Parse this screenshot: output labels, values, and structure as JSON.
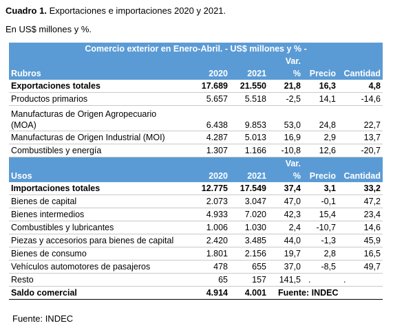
{
  "title": {
    "label": "Cuadro 1.",
    "text": "Exportaciones e importaciones 2020 y 2021."
  },
  "subtitle": "En US$ millones y %.",
  "table": {
    "caption": "Comercio exterior en Enero-Abril. - US$ millones y % -",
    "sections": [
      {
        "header": {
          "top": "Var.",
          "cells": [
            "Rubros",
            "2020",
            "2021",
            "%",
            "Precio",
            "Cantidad"
          ]
        },
        "rows": [
          {
            "bold": true,
            "cells": [
              "Exportaciones totales",
              "17.689",
              "21.550",
              "21,8",
              "16,3",
              "4,8"
            ]
          },
          {
            "cells": [
              "Productos primarios",
              "5.657",
              "5.518",
              "-2,5",
              "14,1",
              "-14,6"
            ]
          },
          {
            "cells": [
              [
                "Manufacturas de Origen Agropecuario",
                "(MOA)"
              ],
              "6.438",
              "9.853",
              "53,0",
              "24,8",
              "22,7"
            ]
          },
          {
            "cells": [
              "Manufacturas de Origen Industrial (MOI)",
              "4.287",
              "5.013",
              "16,9",
              "2,9",
              "13,7"
            ]
          },
          {
            "cells": [
              "Combustibles y energía",
              "1.307",
              "1.166",
              "-10,8",
              "12,6",
              "-20,7"
            ]
          }
        ]
      },
      {
        "header": {
          "top": "Var.",
          "cells": [
            "Usos",
            "2020",
            "2021",
            "%",
            "Precio",
            "Cantidad"
          ]
        },
        "rows": [
          {
            "bold": true,
            "cells": [
              "Importaciones totales",
              "12.775",
              "17.549",
              "37,4",
              "3,1",
              "33,2"
            ]
          },
          {
            "cells": [
              "Bienes de capital",
              "2.073",
              "3.047",
              "47,0",
              "-0,1",
              "47,2"
            ]
          },
          {
            "cells": [
              "Bienes intermedios",
              "4.933",
              "7.020",
              "42,3",
              "15,4",
              "23,4"
            ]
          },
          {
            "cells": [
              "Combustibles y lubricantes",
              "1.006",
              "1.030",
              "2,4",
              "-10,7",
              "14,6"
            ]
          },
          {
            "cells": [
              "Piezas y accesorios para bienes de capital",
              "2.420",
              "3.485",
              "44,0",
              "-1,3",
              "45,9"
            ]
          },
          {
            "cells": [
              "Bienes de consumo",
              "1.801",
              "2.156",
              "19,7",
              "2,8",
              "16,5"
            ]
          },
          {
            "cells": [
              "Vehículos automotores de pasajeros",
              "478",
              "655",
              "37,0",
              "-8,5",
              "49,7"
            ]
          },
          {
            "cells": [
              "Resto",
              "65",
              "157",
              "141,5",
              ".",
              "."
            ]
          },
          {
            "bold": true,
            "cells": [
              "Saldo comercial",
              "4.914",
              "4.001",
              "Fuente: INDEC"
            ]
          }
        ]
      }
    ]
  },
  "footer": "Fuente: INDEC"
}
